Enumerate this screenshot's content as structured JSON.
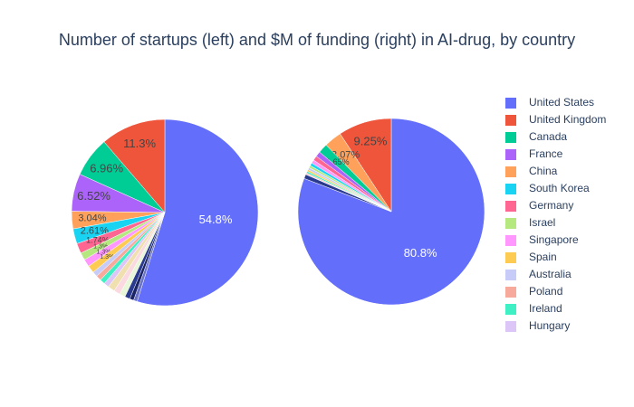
{
  "chart_data": [
    {
      "type": "pie",
      "title": "Number of startups (left) and $M of funding (right) in AI-drug, by country",
      "categories": [
        "United States",
        "United Kingdom",
        "Canada",
        "France",
        "China",
        "South Korea",
        "Germany",
        "Israel",
        "Singapore",
        "Spain",
        "Australia",
        "Poland",
        "Ireland",
        "Hungary",
        null,
        null,
        null,
        null,
        null,
        null
      ],
      "values": [
        54.8,
        11.3,
        6.96,
        6.52,
        3.04,
        2.61,
        1.74,
        1.3,
        1.3,
        1.3,
        0.9,
        0.9,
        0.9,
        0.9,
        1.2,
        1.1,
        1.0,
        0.9,
        0.7,
        0.63
      ],
      "value_labels": [
        "54.8%",
        "11.3%",
        "6.96%",
        "6.52%",
        "3.04%",
        "2.61%",
        "1.74%",
        "1.3%",
        "1.3%",
        "1.3%",
        null,
        null,
        null,
        null,
        null,
        null,
        null,
        null,
        null,
        null
      ],
      "colors": [
        "#636efa",
        "#ef553b",
        "#00cc96",
        "#ab63fa",
        "#ffa15a",
        "#19d3f3",
        "#ff6692",
        "#b6e880",
        "#ff97ff",
        "#fecb52",
        "#c6cbf8",
        "#f7a99c",
        "#3ef0c4",
        "#dcc6f7",
        "#f0e0b0",
        "#fbd9e0",
        "#e7f7d7",
        "#2a3a8f",
        "#1b2466",
        "#6a73c8"
      ]
    },
    {
      "type": "pie",
      "categories": [
        "United States",
        "United Kingdom",
        "China",
        "Canada",
        "France",
        "Germany",
        "Singapore",
        "South Korea",
        "Israel",
        "Australia",
        "Spain",
        "Ireland",
        "Poland",
        "Hungary",
        null
      ],
      "values": [
        80.8,
        9.25,
        3.07,
        1.65,
        0.9,
        0.8,
        0.6,
        0.5,
        0.4,
        0.4,
        0.3,
        0.3,
        0.2,
        0.1,
        0.73
      ],
      "value_labels": [
        "80.8%",
        "9.25%",
        "3.07%",
        "1.65%",
        null,
        null,
        null,
        null,
        null,
        null,
        null,
        null,
        null,
        null,
        null
      ],
      "colors": [
        "#636efa",
        "#ef553b",
        "#ffa15a",
        "#00cc96",
        "#ab63fa",
        "#ff6692",
        "#ff97ff",
        "#19d3f3",
        "#b6e880",
        "#c6cbf8",
        "#fecb52",
        "#3ef0c4",
        "#f7a99c",
        "#dcc6f7",
        "#2a3a8f"
      ]
    }
  ]
}
